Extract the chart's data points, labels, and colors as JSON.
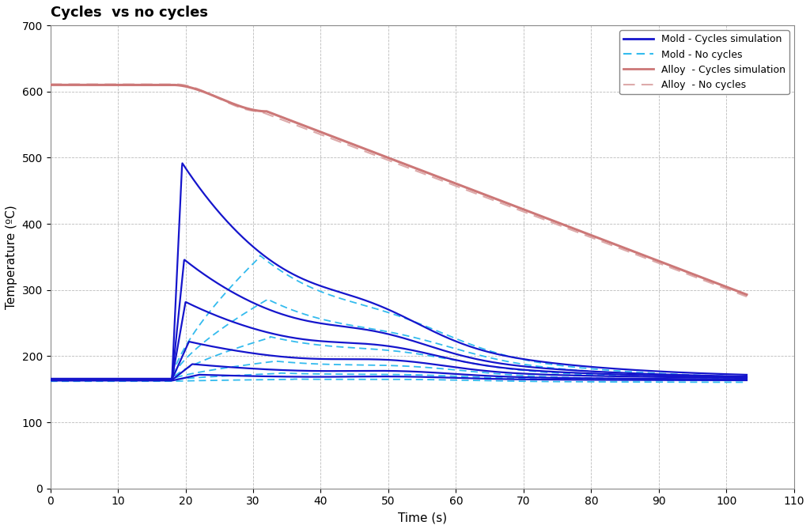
{
  "title": "Cycles  vs no cycles",
  "xlabel": "Time (s)",
  "ylabel": "Temperature (ºC)",
  "xlim": [
    0,
    110
  ],
  "ylim": [
    0,
    700
  ],
  "xticks": [
    0,
    10,
    20,
    30,
    40,
    50,
    60,
    70,
    80,
    90,
    100,
    110
  ],
  "yticks": [
    0,
    100,
    200,
    300,
    400,
    500,
    600,
    700
  ],
  "mold_cycles_color": "#1515cc",
  "mold_nocycles_color": "#33bbee",
  "alloy_cycles_color": "#cc7777",
  "alloy_nocycles_color": "#ddaaaa",
  "legend_entries": [
    "Mold - Cycles simulation",
    "Mold - No cycles",
    "Alloy  - Cycles simulation",
    "Alloy  - No cycles"
  ],
  "grid_color": "#aaaaaa",
  "background_color": "#ffffff"
}
